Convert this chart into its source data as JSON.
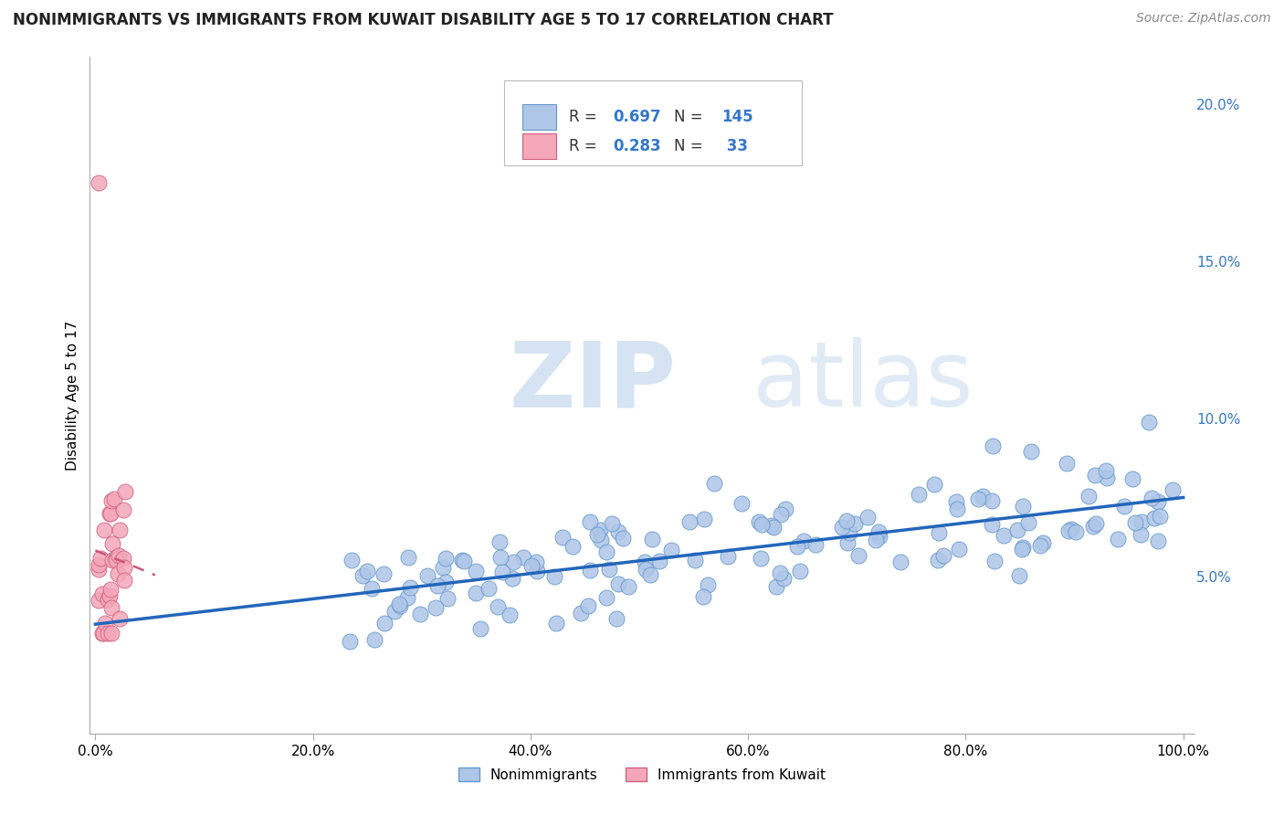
{
  "title": "NONIMMIGRANTS VS IMMIGRANTS FROM KUWAIT DISABILITY AGE 5 TO 17 CORRELATION CHART",
  "source": "Source: ZipAtlas.com",
  "ylabel": "Disability Age 5 to 17",
  "xlim": [
    -0.005,
    1.01
  ],
  "ylim": [
    0.0,
    0.215
  ],
  "x_tick_labels": [
    "0.0%",
    "20.0%",
    "40.0%",
    "60.0%",
    "80.0%",
    "100.0%"
  ],
  "x_tick_vals": [
    0.0,
    0.2,
    0.4,
    0.6,
    0.8,
    1.0
  ],
  "y_tick_labels": [
    "5.0%",
    "10.0%",
    "15.0%",
    "20.0%"
  ],
  "y_tick_vals": [
    0.05,
    0.1,
    0.15,
    0.2
  ],
  "nonimm_color": "#aec6e8",
  "nonimm_edge_color": "#6699cc",
  "imm_color": "#f4a7b9",
  "imm_edge_color": "#d06080",
  "trend_blue": "#2266bb",
  "trend_pink": "#cc5577",
  "legend_label1": "Nonimmigrants",
  "legend_label2": "Immigrants from Kuwait",
  "watermark_zip": "ZIP",
  "watermark_atlas": "atlas",
  "nonimm_seed": 42,
  "imm_seed": 7,
  "title_fontsize": 12,
  "source_fontsize": 10,
  "tick_fontsize": 11,
  "ylabel_fontsize": 11
}
